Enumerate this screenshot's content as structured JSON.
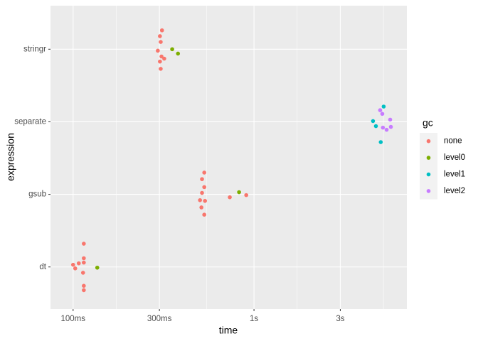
{
  "chart_data": {
    "type": "scatter",
    "x_label": "time",
    "y_label": "expression",
    "xscale": "log",
    "xlim": [
      0.075,
      7.0
    ],
    "xticks": [
      {
        "value": 0.1,
        "label": "100ms"
      },
      {
        "value": 0.3,
        "label": "300ms"
      },
      {
        "value": 1,
        "label": "1s"
      },
      {
        "value": 3,
        "label": "3s"
      }
    ],
    "ylim": [
      0.42,
      4.6
    ],
    "yticks": [
      {
        "value": 1,
        "label": "dt"
      },
      {
        "value": 2,
        "label": "gsub"
      },
      {
        "value": 3,
        "label": "separate"
      },
      {
        "value": 4,
        "label": "stringr"
      }
    ],
    "grid": true,
    "legend_title": "gc",
    "legend_position": "right",
    "series": [
      {
        "name": "none",
        "color": "#F8766D",
        "x": [
          0.1,
          0.1027,
          0.1075,
          0.1146,
          0.1146,
          0.1146,
          0.1135,
          0.1146,
          0.1146,
          0.31,
          0.302,
          0.305,
          0.294,
          0.308,
          0.319,
          0.302,
          0.305,
          0.531,
          0.516,
          0.531,
          0.516,
          0.503,
          0.536,
          0.512,
          0.531,
          0.735,
          0.906
        ],
        "y": [
          1.03,
          0.98,
          1.05,
          1.12,
          1.06,
          1.32,
          0.92,
          0.74,
          0.68,
          4.26,
          4.18,
          4.1,
          3.98,
          3.9,
          3.87,
          3.83,
          3.73,
          2.3,
          2.21,
          2.1,
          2.02,
          1.92,
          1.91,
          1.82,
          1.72,
          1.96,
          1.99
        ]
      },
      {
        "name": "level0",
        "color": "#7CAE00",
        "x": [
          0.136,
          0.353,
          0.38,
          0.827
        ],
        "y": [
          0.99,
          4.0,
          3.94,
          2.03
        ]
      },
      {
        "name": "level1",
        "color": "#00BFC4",
        "x": [
          5.21,
          4.55,
          4.72,
          5.02
        ],
        "y": [
          3.21,
          3.01,
          2.94,
          2.72
        ]
      },
      {
        "name": "level2",
        "color": "#C77CFF",
        "x": [
          4.98,
          5.12,
          5.66,
          5.16,
          5.41,
          5.71
        ],
        "y": [
          3.16,
          3.11,
          3.03,
          2.92,
          2.89,
          2.93
        ]
      }
    ]
  }
}
